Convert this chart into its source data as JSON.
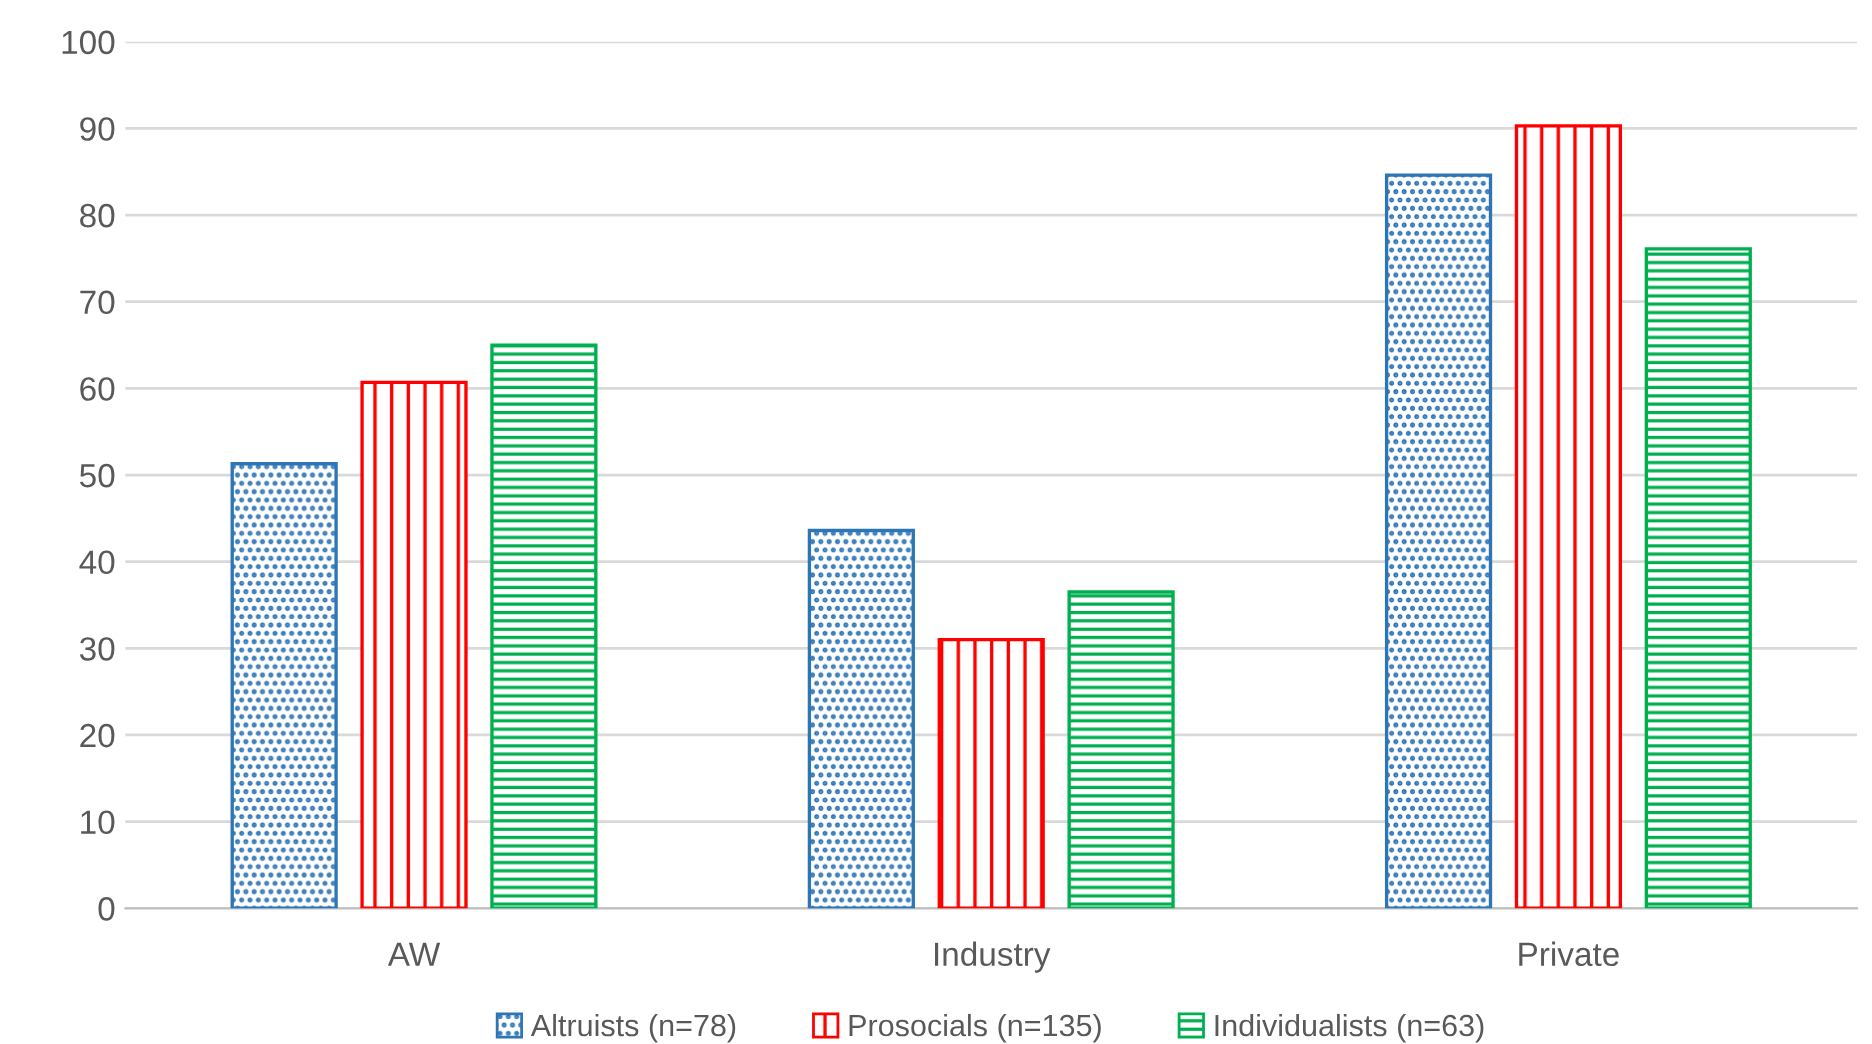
{
  "chart_data": {
    "type": "bar",
    "categories": [
      "AW",
      "Industry",
      "Private"
    ],
    "series": [
      {
        "name": "Altruists (n=78)",
        "color": "#2e75b6",
        "values": [
          51.3,
          43.6,
          84.6
        ]
      },
      {
        "name": "Prosocials (n=135)",
        "color": "#ff0000",
        "values": [
          60.7,
          31.0,
          90.3
        ]
      },
      {
        "name": "Individualists (n=63)",
        "color": "#00b050",
        "values": [
          65.0,
          36.5,
          76.1
        ]
      }
    ],
    "ylim": [
      0,
      100
    ],
    "yticks": [
      0,
      10,
      20,
      30,
      40,
      50,
      60,
      70,
      80,
      90,
      100
    ],
    "grid": "y",
    "legend": "bottom"
  }
}
